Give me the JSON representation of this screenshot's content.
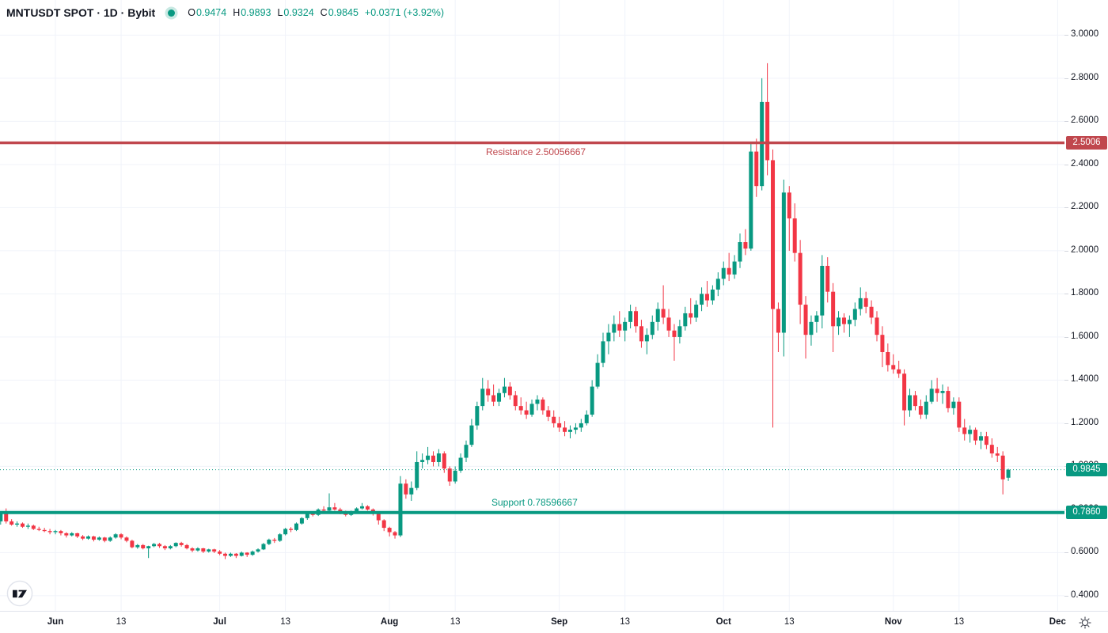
{
  "header": {
    "symbol_title": "MNTUSDT SPOT · 1D · Bybit",
    "ohlc": {
      "o_label": "O",
      "o_value": "0.9474",
      "h_label": "H",
      "h_value": "0.9893",
      "l_label": "L",
      "l_value": "0.9324",
      "c_label": "C",
      "c_value": "0.9845",
      "change": "+0.0371 (+3.92%)"
    }
  },
  "colors": {
    "up": "#089981",
    "down": "#f23645",
    "resistance": "#c0474d",
    "support": "#089981",
    "last_price": "#089981",
    "grid": "#f0f3fa",
    "axis_text": "#131722"
  },
  "chart_data": {
    "type": "candlestick",
    "title": "MNTUSDT SPOT · 1D · Bybit",
    "symbol": "MNTUSDT",
    "market": "SPOT",
    "interval": "1D",
    "exchange": "Bybit",
    "ylim": [
      0.33,
      3.163
    ],
    "grid": true,
    "price_ticks": [
      3.0,
      2.8,
      2.6,
      2.4,
      2.2,
      2.0,
      1.8,
      1.6,
      1.4,
      1.2,
      1.0,
      0.8,
      0.6,
      0.4
    ],
    "time_ticks": [
      {
        "label": "Jun",
        "day": 0,
        "major": true
      },
      {
        "label": "13",
        "day": 12,
        "major": false
      },
      {
        "label": "Jul",
        "day": 30,
        "major": true
      },
      {
        "label": "13",
        "day": 42,
        "major": false
      },
      {
        "label": "Aug",
        "day": 61,
        "major": true
      },
      {
        "label": "13",
        "day": 73,
        "major": false
      },
      {
        "label": "Sep",
        "day": 92,
        "major": true
      },
      {
        "label": "13",
        "day": 104,
        "major": false
      },
      {
        "label": "Oct",
        "day": 122,
        "major": true
      },
      {
        "label": "13",
        "day": 134,
        "major": false
      },
      {
        "label": "Nov",
        "day": 153,
        "major": true
      },
      {
        "label": "13",
        "day": 165,
        "major": false
      },
      {
        "label": "Dec",
        "day": 183,
        "major": true
      }
    ],
    "levels": {
      "resistance": {
        "label": "Resistance 2.50056667",
        "value": 2.50056667,
        "badge": "2.5006"
      },
      "support": {
        "label": "Support 0.78596667",
        "value": 0.78596667,
        "badge": "0.7860"
      },
      "last_price": {
        "value": 0.9845,
        "badge": "0.9845"
      }
    },
    "candles_start_day": -10,
    "candles": [
      [
        0.745,
        0.79,
        0.73,
        0.78
      ],
      [
        0.78,
        0.805,
        0.735,
        0.745
      ],
      [
        0.745,
        0.755,
        0.725,
        0.73
      ],
      [
        0.73,
        0.745,
        0.72,
        0.735
      ],
      [
        0.735,
        0.74,
        0.715,
        0.72
      ],
      [
        0.72,
        0.735,
        0.71,
        0.725
      ],
      [
        0.725,
        0.73,
        0.705,
        0.71
      ],
      [
        0.71,
        0.72,
        0.7,
        0.705
      ],
      [
        0.705,
        0.715,
        0.695,
        0.7
      ],
      [
        0.7,
        0.71,
        0.685,
        0.695
      ],
      [
        0.695,
        0.705,
        0.685,
        0.7
      ],
      [
        0.7,
        0.705,
        0.68,
        0.69
      ],
      [
        0.69,
        0.695,
        0.67,
        0.68
      ],
      [
        0.68,
        0.695,
        0.675,
        0.69
      ],
      [
        0.69,
        0.692,
        0.668,
        0.675
      ],
      [
        0.675,
        0.682,
        0.658,
        0.665
      ],
      [
        0.665,
        0.68,
        0.66,
        0.675
      ],
      [
        0.675,
        0.678,
        0.652,
        0.66
      ],
      [
        0.66,
        0.675,
        0.655,
        0.67
      ],
      [
        0.67,
        0.673,
        0.648,
        0.655
      ],
      [
        0.655,
        0.675,
        0.65,
        0.67
      ],
      [
        0.67,
        0.69,
        0.665,
        0.685
      ],
      [
        0.685,
        0.69,
        0.662,
        0.67
      ],
      [
        0.67,
        0.675,
        0.648,
        0.655
      ],
      [
        0.655,
        0.66,
        0.62,
        0.625
      ],
      [
        0.625,
        0.64,
        0.618,
        0.635
      ],
      [
        0.635,
        0.64,
        0.615,
        0.62
      ],
      [
        0.62,
        0.632,
        0.575,
        0.63
      ],
      [
        0.63,
        0.645,
        0.625,
        0.64
      ],
      [
        0.64,
        0.645,
        0.622,
        0.63
      ],
      [
        0.63,
        0.635,
        0.612,
        0.62
      ],
      [
        0.62,
        0.635,
        0.615,
        0.63
      ],
      [
        0.63,
        0.648,
        0.625,
        0.645
      ],
      [
        0.645,
        0.65,
        0.628,
        0.635
      ],
      [
        0.635,
        0.64,
        0.615,
        0.62
      ],
      [
        0.62,
        0.625,
        0.602,
        0.61
      ],
      [
        0.61,
        0.625,
        0.605,
        0.62
      ],
      [
        0.62,
        0.622,
        0.598,
        0.605
      ],
      [
        0.605,
        0.618,
        0.6,
        0.615
      ],
      [
        0.615,
        0.618,
        0.598,
        0.605
      ],
      [
        0.605,
        0.612,
        0.588,
        0.595
      ],
      [
        0.595,
        0.6,
        0.57,
        0.585
      ],
      [
        0.585,
        0.6,
        0.58,
        0.595
      ],
      [
        0.595,
        0.598,
        0.575,
        0.585
      ],
      [
        0.585,
        0.605,
        0.582,
        0.6
      ],
      [
        0.6,
        0.602,
        0.58,
        0.59
      ],
      [
        0.59,
        0.61,
        0.585,
        0.605
      ],
      [
        0.605,
        0.62,
        0.6,
        0.615
      ],
      [
        0.615,
        0.645,
        0.612,
        0.64
      ],
      [
        0.64,
        0.665,
        0.635,
        0.66
      ],
      [
        0.66,
        0.668,
        0.645,
        0.655
      ],
      [
        0.655,
        0.69,
        0.65,
        0.685
      ],
      [
        0.685,
        0.715,
        0.68,
        0.71
      ],
      [
        0.71,
        0.718,
        0.695,
        0.705
      ],
      [
        0.705,
        0.74,
        0.7,
        0.735
      ],
      [
        0.735,
        0.765,
        0.73,
        0.76
      ],
      [
        0.76,
        0.785,
        0.752,
        0.78
      ],
      [
        0.78,
        0.788,
        0.768,
        0.775
      ],
      [
        0.775,
        0.805,
        0.77,
        0.8
      ],
      [
        0.8,
        0.815,
        0.785,
        0.795
      ],
      [
        0.795,
        0.875,
        0.79,
        0.81
      ],
      [
        0.81,
        0.83,
        0.795,
        0.8
      ],
      [
        0.8,
        0.808,
        0.778,
        0.785
      ],
      [
        0.785,
        0.795,
        0.768,
        0.775
      ],
      [
        0.775,
        0.795,
        0.77,
        0.79
      ],
      [
        0.79,
        0.81,
        0.785,
        0.805
      ],
      [
        0.805,
        0.83,
        0.8,
        0.815
      ],
      [
        0.815,
        0.82,
        0.795,
        0.8
      ],
      [
        0.8,
        0.805,
        0.772,
        0.78
      ],
      [
        0.78,
        0.785,
        0.73,
        0.75
      ],
      [
        0.75,
        0.755,
        0.7,
        0.715
      ],
      [
        0.715,
        0.72,
        0.675,
        0.695
      ],
      [
        0.695,
        0.7,
        0.665,
        0.68
      ],
      [
        0.68,
        0.955,
        0.672,
        0.92
      ],
      [
        0.92,
        0.94,
        0.85,
        0.87
      ],
      [
        0.87,
        0.93,
        0.84,
        0.9
      ],
      [
        0.9,
        1.07,
        0.89,
        1.02
      ],
      [
        1.02,
        1.06,
        0.99,
        1.03
      ],
      [
        1.03,
        1.09,
        1.01,
        1.05
      ],
      [
        1.05,
        1.07,
        1.0,
        1.02
      ],
      [
        1.02,
        1.08,
        1.0,
        1.06
      ],
      [
        1.06,
        1.07,
        0.97,
        0.99
      ],
      [
        0.99,
        1.0,
        0.91,
        0.93
      ],
      [
        0.93,
        1.0,
        0.92,
        0.98
      ],
      [
        0.98,
        1.06,
        0.97,
        1.04
      ],
      [
        1.04,
        1.12,
        1.02,
        1.1
      ],
      [
        1.1,
        1.22,
        1.09,
        1.19
      ],
      [
        1.19,
        1.3,
        1.17,
        1.28
      ],
      [
        1.28,
        1.41,
        1.26,
        1.36
      ],
      [
        1.36,
        1.4,
        1.3,
        1.33
      ],
      [
        1.33,
        1.38,
        1.28,
        1.3
      ],
      [
        1.3,
        1.36,
        1.28,
        1.34
      ],
      [
        1.34,
        1.41,
        1.32,
        1.37
      ],
      [
        1.37,
        1.39,
        1.31,
        1.33
      ],
      [
        1.33,
        1.35,
        1.26,
        1.28
      ],
      [
        1.28,
        1.32,
        1.24,
        1.26
      ],
      [
        1.26,
        1.3,
        1.22,
        1.24
      ],
      [
        1.24,
        1.31,
        1.23,
        1.29
      ],
      [
        1.29,
        1.33,
        1.26,
        1.31
      ],
      [
        1.31,
        1.32,
        1.24,
        1.26
      ],
      [
        1.26,
        1.28,
        1.21,
        1.23
      ],
      [
        1.23,
        1.26,
        1.18,
        1.2
      ],
      [
        1.2,
        1.23,
        1.16,
        1.18
      ],
      [
        1.18,
        1.21,
        1.14,
        1.16
      ],
      [
        1.16,
        1.19,
        1.13,
        1.17
      ],
      [
        1.17,
        1.2,
        1.15,
        1.18
      ],
      [
        1.18,
        1.22,
        1.16,
        1.2
      ],
      [
        1.2,
        1.26,
        1.19,
        1.24
      ],
      [
        1.24,
        1.4,
        1.23,
        1.37
      ],
      [
        1.37,
        1.52,
        1.36,
        1.48
      ],
      [
        1.48,
        1.62,
        1.46,
        1.58
      ],
      [
        1.58,
        1.66,
        1.52,
        1.62
      ],
      [
        1.62,
        1.7,
        1.58,
        1.66
      ],
      [
        1.66,
        1.72,
        1.6,
        1.63
      ],
      [
        1.63,
        1.69,
        1.58,
        1.67
      ],
      [
        1.67,
        1.75,
        1.64,
        1.72
      ],
      [
        1.72,
        1.74,
        1.62,
        1.65
      ],
      [
        1.65,
        1.68,
        1.55,
        1.58
      ],
      [
        1.58,
        1.64,
        1.52,
        1.61
      ],
      [
        1.61,
        1.7,
        1.59,
        1.67
      ],
      [
        1.67,
        1.76,
        1.63,
        1.73
      ],
      [
        1.73,
        1.84,
        1.66,
        1.69
      ],
      [
        1.69,
        1.73,
        1.6,
        1.63
      ],
      [
        1.63,
        1.66,
        1.49,
        1.6
      ],
      [
        1.6,
        1.68,
        1.57,
        1.65
      ],
      [
        1.65,
        1.74,
        1.63,
        1.71
      ],
      [
        1.71,
        1.78,
        1.66,
        1.69
      ],
      [
        1.69,
        1.77,
        1.67,
        1.75
      ],
      [
        1.75,
        1.83,
        1.72,
        1.8
      ],
      [
        1.8,
        1.86,
        1.74,
        1.77
      ],
      [
        1.77,
        1.84,
        1.75,
        1.82
      ],
      [
        1.82,
        1.9,
        1.79,
        1.87
      ],
      [
        1.87,
        1.95,
        1.84,
        1.92
      ],
      [
        1.92,
        1.99,
        1.86,
        1.89
      ],
      [
        1.89,
        1.98,
        1.87,
        1.95
      ],
      [
        1.95,
        2.08,
        1.92,
        2.04
      ],
      [
        2.04,
        2.1,
        1.98,
        2.01
      ],
      [
        2.01,
        2.5,
        2.0,
        2.46
      ],
      [
        2.46,
        2.52,
        2.25,
        2.3
      ],
      [
        2.3,
        2.8,
        2.28,
        2.69
      ],
      [
        2.69,
        2.87,
        2.35,
        2.42
      ],
      [
        2.42,
        2.47,
        1.18,
        1.73
      ],
      [
        1.73,
        1.76,
        1.53,
        1.62
      ],
      [
        1.62,
        2.33,
        1.51,
        2.27
      ],
      [
        2.27,
        2.3,
        2.0,
        2.15
      ],
      [
        2.15,
        2.22,
        1.95,
        1.99
      ],
      [
        1.99,
        2.05,
        1.66,
        1.75
      ],
      [
        1.75,
        1.79,
        1.5,
        1.61
      ],
      [
        1.61,
        1.7,
        1.56,
        1.67
      ],
      [
        1.67,
        1.72,
        1.62,
        1.7
      ],
      [
        1.7,
        1.98,
        1.64,
        1.93
      ],
      [
        1.93,
        1.97,
        1.76,
        1.81
      ],
      [
        1.81,
        1.85,
        1.53,
        1.65
      ],
      [
        1.65,
        1.72,
        1.61,
        1.69
      ],
      [
        1.69,
        1.71,
        1.62,
        1.66
      ],
      [
        1.66,
        1.7,
        1.6,
        1.68
      ],
      [
        1.68,
        1.76,
        1.65,
        1.73
      ],
      [
        1.73,
        1.83,
        1.7,
        1.78
      ],
      [
        1.78,
        1.81,
        1.71,
        1.74
      ],
      [
        1.74,
        1.77,
        1.66,
        1.69
      ],
      [
        1.69,
        1.72,
        1.58,
        1.61
      ],
      [
        1.61,
        1.65,
        1.46,
        1.53
      ],
      [
        1.53,
        1.57,
        1.44,
        1.47
      ],
      [
        1.47,
        1.52,
        1.43,
        1.45
      ],
      [
        1.45,
        1.49,
        1.41,
        1.43
      ],
      [
        1.43,
        1.45,
        1.19,
        1.26
      ],
      [
        1.26,
        1.36,
        1.23,
        1.33
      ],
      [
        1.33,
        1.35,
        1.26,
        1.28
      ],
      [
        1.28,
        1.31,
        1.22,
        1.24
      ],
      [
        1.24,
        1.33,
        1.22,
        1.3
      ],
      [
        1.3,
        1.4,
        1.29,
        1.36
      ],
      [
        1.36,
        1.41,
        1.3,
        1.34
      ],
      [
        1.34,
        1.38,
        1.29,
        1.35
      ],
      [
        1.35,
        1.37,
        1.25,
        1.27
      ],
      [
        1.27,
        1.32,
        1.24,
        1.3
      ],
      [
        1.3,
        1.32,
        1.16,
        1.18
      ],
      [
        1.18,
        1.22,
        1.12,
        1.15
      ],
      [
        1.15,
        1.19,
        1.11,
        1.17
      ],
      [
        1.17,
        1.18,
        1.1,
        1.12
      ],
      [
        1.12,
        1.16,
        1.08,
        1.14
      ],
      [
        1.14,
        1.16,
        1.08,
        1.1
      ],
      [
        1.1,
        1.13,
        1.04,
        1.06
      ],
      [
        1.06,
        1.09,
        1.02,
        1.05
      ],
      [
        1.05,
        1.07,
        0.87,
        0.94
      ],
      [
        0.9474,
        0.9893,
        0.9324,
        0.9845
      ]
    ]
  }
}
